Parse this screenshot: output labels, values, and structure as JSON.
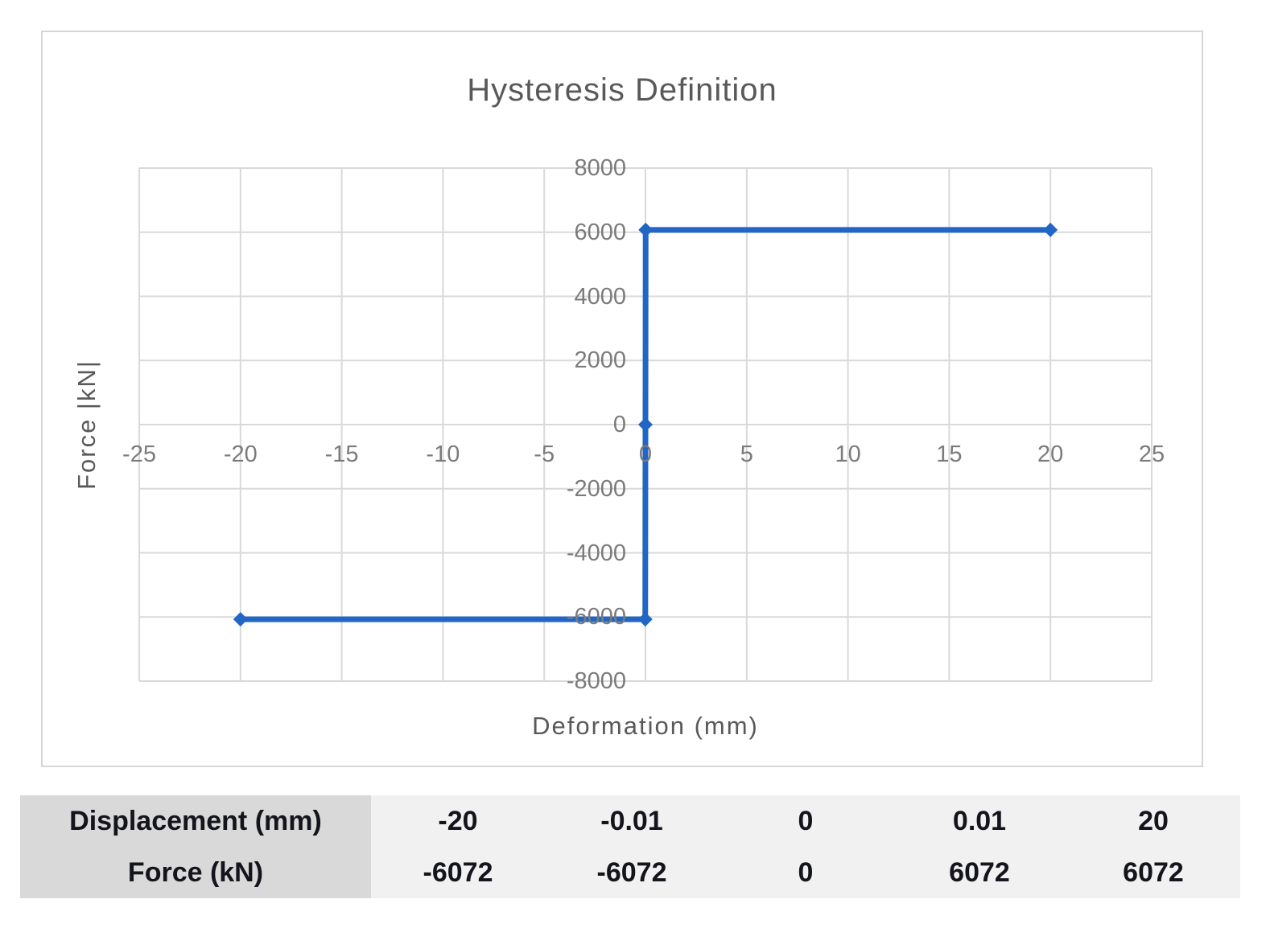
{
  "chart_data": {
    "type": "line",
    "title": "Hysteresis Definition",
    "xlabel": "Deformation (mm)",
    "ylabel": "Force |kN|",
    "xlim": [
      -25,
      25
    ],
    "ylim": [
      -8000,
      8000
    ],
    "x_ticks": [
      -25,
      -20,
      -15,
      -10,
      -5,
      0,
      5,
      10,
      15,
      20,
      25
    ],
    "y_ticks": [
      -8000,
      -6000,
      -4000,
      -2000,
      0,
      2000,
      4000,
      6000,
      8000
    ],
    "grid": true,
    "legend": "none",
    "series": [
      {
        "name": "Hysteresis",
        "color": "#2166c4",
        "marker": "diamond",
        "points": [
          [
            -20,
            -6072
          ],
          [
            -0.01,
            -6072
          ],
          [
            0,
            0
          ],
          [
            0.01,
            6072
          ],
          [
            20,
            6072
          ]
        ]
      }
    ]
  },
  "table": {
    "rows": [
      {
        "header": "Displacement (mm)",
        "values": [
          "-20",
          "-0.01",
          "0",
          "0.01",
          "20"
        ]
      },
      {
        "header": "Force (kN)",
        "values": [
          "-6072",
          "-6072",
          "0",
          "6072",
          "6072"
        ]
      }
    ]
  },
  "colors": {
    "grid": "#d9d9d9",
    "series_blue": "#2166c4",
    "title_text": "#595959",
    "tick_text": "#7b7b7b",
    "table_header_bg": "#d9d9d9",
    "table_body_bg": "#f1f1f1",
    "chart_border": "#d6d6d6"
  }
}
